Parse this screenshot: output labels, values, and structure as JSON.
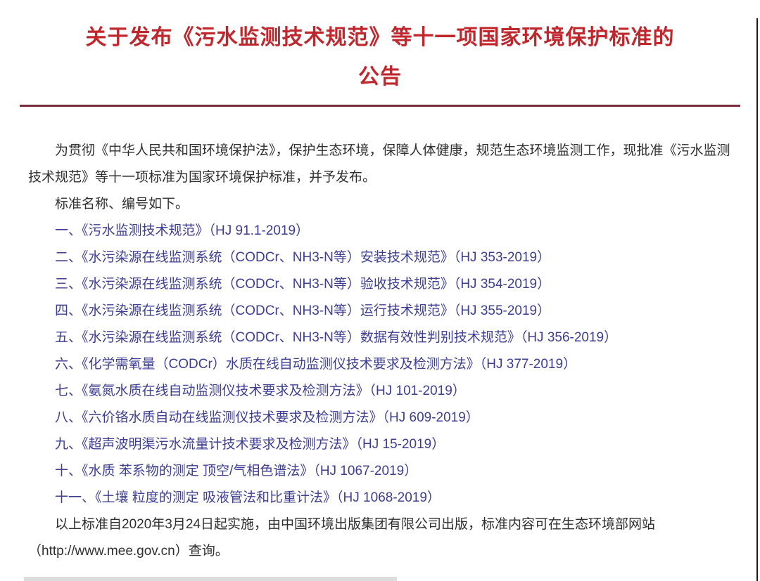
{
  "document": {
    "title": "关于发布《污水监测技术规范》等十一项国家环境保护标准的公告",
    "intro": "为贯彻《中华人民共和国环境保护法》，保护生态环境，保障人体健康，规范生态环境监测工作，现批准《污水监测技术规范》等十一项标准为国家环境保护标准，并予发布。",
    "list_lead": "标准名称、编号如下。",
    "standards": [
      "一、《污水监测技术规范》（HJ 91.1-2019）",
      "二、《水污染源在线监测系统（CODCr、NH3-N等）安装技术规范》（HJ 353-2019）",
      "三、《水污染源在线监测系统（CODCr、NH3-N等）验收技术规范》（HJ 354-2019）",
      "四、《水污染源在线监测系统（CODCr、NH3-N等）运行技术规范》（HJ 355-2019）",
      "五、《水污染源在线监测系统（CODCr、NH3-N等）数据有效性判别技术规范》（HJ 356-2019）",
      "六、《化学需氧量（CODCr）水质在线自动监测仪技术要求及检测方法》（HJ 377-2019）",
      "七、《氨氮水质在线自动监测仪技术要求及检测方法》（HJ 101-2019）",
      "八、《六价铬水质自动在线监测仪技术要求及检测方法》（HJ 609-2019）",
      "九、《超声波明渠污水流量计技术要求及检测方法》（HJ 15-2019）",
      "十、《水质 苯系物的测定 顶空/气相色谱法》（HJ 1067-2019）",
      "十一、《土壤 粒度的测定 吸液管法和比重计法》（HJ 1068-2019）"
    ],
    "footer": "以上标准自2020年3月24日起实施，由中国环境出版集团有限公司出版，标准内容可在生态环境部网站（http://www.mee.gov.cn）查询。",
    "colors": {
      "title_red": "#c0272d",
      "rule_maroon": "#7a2c3c",
      "link_blue": "#3d3d93",
      "body_text": "#2f2f2f"
    }
  }
}
